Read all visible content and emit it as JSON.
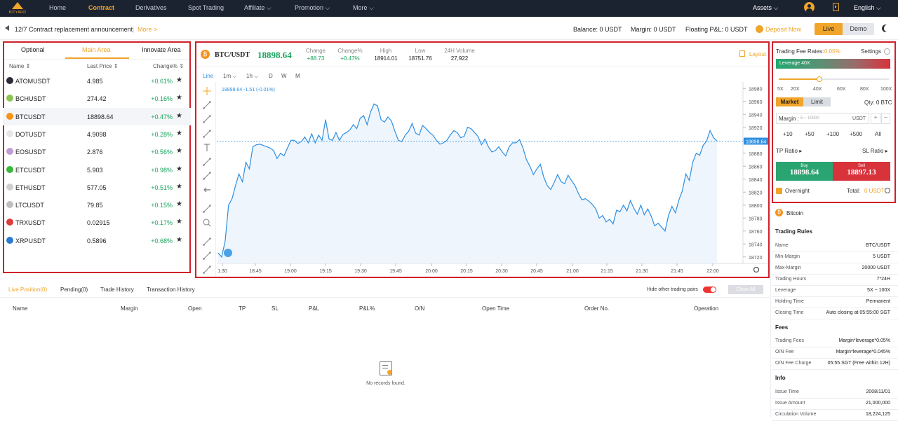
{
  "nav": {
    "logo_text": "BITYARD",
    "items": [
      "Home",
      "Contract",
      "Derivatives",
      "Spot Trading",
      "Affiliate ⌵",
      "Promotion ⌵",
      "More ⌵"
    ],
    "assets": "Assets ⌵",
    "language": "English ⌵"
  },
  "announcement": {
    "text": "12/7 Contract replacement announcement",
    "more": "More >"
  },
  "account": {
    "balance": "Balance: 0 USDT",
    "margin": "Margin: 0 USDT",
    "floating": "Floating P&L: 0 USDT",
    "deposit": "Deposit Now",
    "live": "Live",
    "demo": "Demo"
  },
  "market": {
    "tabs": [
      "Optional",
      "Main Area",
      "Innovate Area"
    ],
    "headers": {
      "name": "Name ⇕",
      "price": "Last Price ⇕",
      "change": "Change% ⇕"
    },
    "rows": [
      {
        "name": "ATOMUSDT",
        "price": "4.985",
        "change": "+0.61%",
        "color": "#2b2b3b"
      },
      {
        "name": "BCHUSDT",
        "price": "274.42",
        "change": "+0.16%",
        "color": "#8dc351"
      },
      {
        "name": "BTCUSDT",
        "price": "18898.64",
        "change": "+0.47%",
        "color": "#f7931a"
      },
      {
        "name": "DOTUSDT",
        "price": "4.9098",
        "change": "+0.28%",
        "color": "#e6e6e6"
      },
      {
        "name": "EOSUSDT",
        "price": "2.876",
        "change": "+0.56%",
        "color": "#c39bd3"
      },
      {
        "name": "ETCUSDT",
        "price": "5.903",
        "change": "+0.98%",
        "color": "#3ab83a"
      },
      {
        "name": "ETHUSDT",
        "price": "577.05",
        "change": "+0.51%",
        "color": "#cfcfcf"
      },
      {
        "name": "LTCUSDT",
        "price": "79.85",
        "change": "+0.15%",
        "color": "#bebebe"
      },
      {
        "name": "TRXUSDT",
        "price": "0.02915",
        "change": "+0.17%",
        "color": "#e03a3a"
      },
      {
        "name": "XRPUSDT",
        "price": "0.5896",
        "change": "+0.68%",
        "color": "#2a7bd0"
      }
    ],
    "star": "★"
  },
  "ticker": {
    "pair": "BTC/USDT",
    "price": "18898.64",
    "change_label": "Change",
    "change": "+88.73",
    "changep_label": "Change%",
    "changep": "+0.47%",
    "high_label": "High",
    "high": "18914.01",
    "low_label": "Low",
    "low": "18751.76",
    "vol_label": "24H Volume",
    "vol": "27,922",
    "layout": "Layout"
  },
  "chart_controls": {
    "line": "Line",
    "intervals": [
      "1m ⌵",
      "1h ⌵",
      "D",
      "W",
      "M"
    ],
    "readout": "18898.64  -1.51 (-0.01%)"
  },
  "chart_data": {
    "type": "area",
    "title": "",
    "x_ticks": [
      "1:30",
      "18:45",
      "19:00",
      "19:15",
      "19:30",
      "19:45",
      "20:00",
      "20:15",
      "20:30",
      "20:45",
      "21:00",
      "21:15",
      "21:30",
      "21:45",
      "22:00"
    ],
    "y_ticks": [
      18980,
      18960,
      18940,
      18920,
      18900,
      18880,
      18860,
      18840,
      18820,
      18800,
      18780,
      18760,
      18740,
      18720
    ],
    "ylim": [
      18710,
      18990
    ],
    "current_price_label": "18898.64",
    "current_price": 18898.64,
    "values": [
      18726,
      18720,
      18744,
      18800,
      18810,
      18830,
      18848,
      18836,
      18866,
      18856,
      18890,
      18893,
      18894,
      18892,
      18890,
      18888,
      18884,
      18872,
      18880,
      18876,
      18888,
      18900,
      18900,
      18895,
      18898,
      18905,
      18896,
      18910,
      18896,
      18908,
      18900,
      18932,
      18902,
      18900,
      18912,
      18900,
      18909,
      18912,
      18916,
      18924,
      18918,
      18934,
      18938,
      18924,
      18944,
      18956,
      18953,
      18932,
      18928,
      18936,
      18930,
      18914,
      18900,
      18898,
      18908,
      18914,
      18926,
      18911,
      18908,
      18923,
      18918,
      18912,
      18908,
      18900,
      18894,
      18896,
      18900,
      18908,
      18915,
      18912,
      18904,
      18906,
      18920,
      18918,
      18912,
      18906,
      18893,
      18902,
      18890,
      18882,
      18884,
      18890,
      18882,
      18876,
      18890,
      18896,
      18896,
      18901,
      18888,
      18870,
      18860,
      18847,
      18856,
      18863,
      18843,
      18830,
      18824,
      18835,
      18847,
      18836,
      18833,
      18846,
      18838,
      18830,
      18818,
      18808,
      18810,
      18806,
      18801,
      18794,
      18780,
      18784,
      18774,
      18778,
      18771,
      18792,
      18790,
      18800,
      18791,
      18807,
      18795,
      18786,
      18800,
      18785,
      18794,
      18783,
      18768,
      18772,
      18766,
      18760,
      18784,
      18798,
      18788,
      18808,
      18822,
      18848,
      18838,
      18866,
      18880,
      18877,
      18892,
      18899,
      18915,
      18904,
      18899
    ]
  },
  "positions": {
    "tabs": [
      "Live Position(0)",
      "Pending(0)",
      "Trade History",
      "Transaction History"
    ],
    "hide_label": "Hide other trading pairs",
    "close_all": "Close All",
    "headers": [
      "Name",
      "Margin",
      "Open",
      "TP",
      "SL",
      "P&L",
      "P&L%",
      "O/N",
      "Open Time",
      "Order No.",
      "Operation"
    ],
    "empty": "No records found."
  },
  "order": {
    "fee_label": "Trading Fee Rates:",
    "fee_value": "0.05%",
    "settings": "Settings",
    "leverage": "Leverage 40X",
    "leverage_value": 40,
    "lev_marks": [
      "5X",
      "20X",
      "40X",
      "60X",
      "80X",
      "100X"
    ],
    "market": "Market",
    "limit": "Limit",
    "qty": "Qty: 0 BTC",
    "margin_label": "Margin :",
    "margin_placeholder": "5 ~ 10000",
    "margin_unit": "USDT",
    "quick": [
      "+10",
      "+50",
      "+100",
      "+500",
      "All"
    ],
    "tp": "TP Ratio ▸",
    "sl": "SL Ratio ▸",
    "buy": "Buy",
    "buy_price": "18898.64",
    "sell": "Sell",
    "sell_price": "18897.13",
    "overnight": "Overnight",
    "total_label": "Total:",
    "total_value": "0 USDT"
  },
  "rules": {
    "coin": "Bitcoin",
    "trading_rules": "Trading Rules",
    "items": [
      [
        "Name",
        "BTC/USDT"
      ],
      [
        "Min-Margin",
        "5 USDT"
      ],
      [
        "Max-Margin",
        "20000 USDT"
      ],
      [
        "Trading Hours",
        "7*24H"
      ],
      [
        "Leverage",
        "5X ~ 100X"
      ],
      [
        "Holding Time",
        "Permanent"
      ],
      [
        "Closing Time",
        "Auto closing at 05:55:00 SGT"
      ]
    ],
    "fees": "Fees",
    "fee_items": [
      [
        "Trading Fees",
        "Margin*leverage*0.05%"
      ],
      [
        "O/N Fee",
        "Margin*leverage*0.045%"
      ],
      [
        "O/N Fee Charge",
        "05:55 SGT (Free within 12H)"
      ]
    ],
    "info": "Info",
    "info_items": [
      [
        "Issue Time",
        "2008/11/01"
      ],
      [
        "Issue Amount",
        "21,000,000"
      ],
      [
        "Circulation Volume",
        "18,224,125"
      ]
    ]
  }
}
